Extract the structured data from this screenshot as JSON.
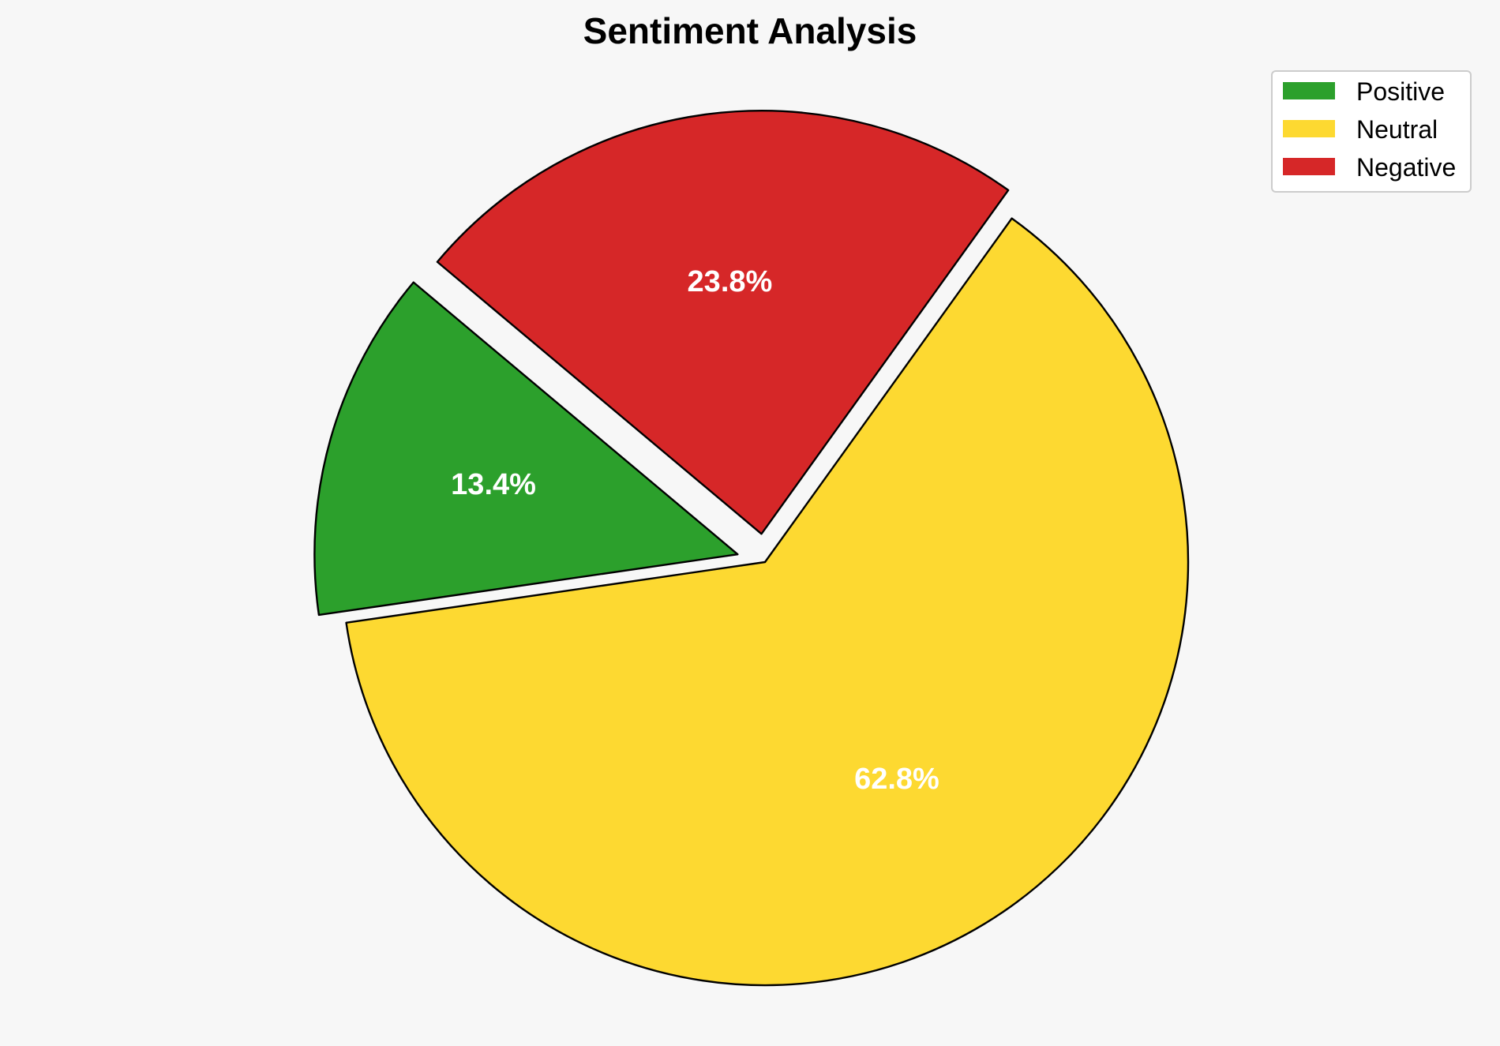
{
  "chart_data": {
    "type": "pie",
    "title": "Sentiment Analysis",
    "categories": [
      "Positive",
      "Neutral",
      "Negative"
    ],
    "values": [
      13.4,
      62.8,
      23.8
    ],
    "value_labels": [
      "13.4%",
      "62.8%",
      "23.8%"
    ],
    "colors": [
      "#2ca02c",
      "#fdd931",
      "#d62728"
    ],
    "exploded": [
      true,
      false,
      true
    ],
    "edge_color": "#000000",
    "label_color": "#ffffff",
    "legend_position": "top-right",
    "start_angle_deg": 140,
    "direction": "counterclockwise"
  }
}
